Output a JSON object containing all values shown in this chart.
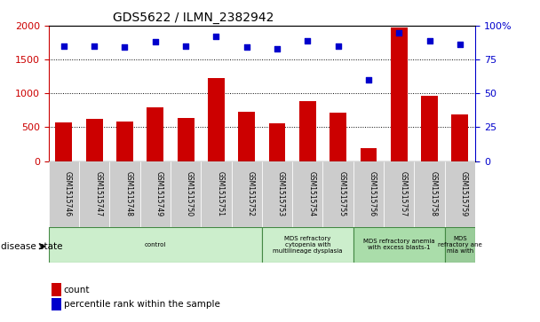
{
  "title": "GDS5622 / ILMN_2382942",
  "samples": [
    "GSM1515746",
    "GSM1515747",
    "GSM1515748",
    "GSM1515749",
    "GSM1515750",
    "GSM1515751",
    "GSM1515752",
    "GSM1515753",
    "GSM1515754",
    "GSM1515755",
    "GSM1515756",
    "GSM1515757",
    "GSM1515758",
    "GSM1515759"
  ],
  "counts": [
    570,
    620,
    580,
    800,
    640,
    1230,
    730,
    560,
    880,
    710,
    185,
    1970,
    960,
    690
  ],
  "percentiles": [
    85,
    85,
    84,
    88,
    85,
    92,
    84,
    83,
    89,
    85,
    60,
    95,
    89,
    86
  ],
  "ylim_left": [
    0,
    2000
  ],
  "ylim_right": [
    0,
    100
  ],
  "yticks_left": [
    0,
    500,
    1000,
    1500,
    2000
  ],
  "yticks_right": [
    0,
    25,
    50,
    75,
    100
  ],
  "bar_color": "#cc0000",
  "dot_color": "#0000cc",
  "grid_color": "#000000",
  "disease_states": [
    {
      "label": "control",
      "start": 0,
      "end": 7,
      "color": "#cceecc"
    },
    {
      "label": "MDS refractory\ncytopenia with\nmultilineage dysplasia",
      "start": 7,
      "end": 10,
      "color": "#cceecc"
    },
    {
      "label": "MDS refractory anemia\nwith excess blasts-1",
      "start": 10,
      "end": 13,
      "color": "#aaddaa"
    },
    {
      "label": "MDS\nrefractory ane\nmia with",
      "start": 13,
      "end": 14,
      "color": "#99cc99"
    }
  ],
  "xlabel_disease": "disease state",
  "legend_count": "count",
  "legend_percentile": "percentile rank within the sample",
  "background_color": "#ffffff",
  "tick_label_color_left": "#cc0000",
  "tick_label_color_right": "#0000cc",
  "xtick_box_color": "#cccccc"
}
